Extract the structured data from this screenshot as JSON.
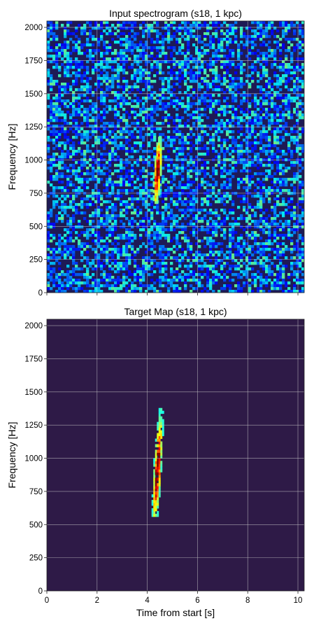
{
  "chart_data": [
    {
      "type": "heatmap",
      "title": "Input spectrogram (s18, 1 kpc)",
      "xlabel": "",
      "ylabel": "Frequency [Hz]",
      "xlim": [
        0,
        10.25
      ],
      "ylim": [
        0,
        2048
      ],
      "x_ticks": [
        0,
        2,
        4,
        6,
        8,
        10
      ],
      "x_ticklabels": [
        "",
        "",
        "",
        "",
        "",
        ""
      ],
      "y_ticks": [
        0,
        250,
        500,
        750,
        1000,
        1250,
        1500,
        1750,
        2000
      ],
      "y_ticklabels": [
        "0",
        "250",
        "500",
        "750",
        "1000",
        "1250",
        "1500",
        "1750",
        "2000"
      ],
      "grid": true,
      "colormap": "jet",
      "background": "noise",
      "signal": {
        "time_s": [
          4.15,
          4.65
        ],
        "freq_hz": [
          650,
          1250
        ],
        "peak": {
          "time_s": 4.4,
          "freq_hz": 900
        }
      }
    },
    {
      "type": "heatmap",
      "title": "Target Map (s18, 1 kpc)",
      "xlabel": "Time from start [s]",
      "ylabel": "Frequency [Hz]",
      "xlim": [
        0,
        10.25
      ],
      "ylim": [
        0,
        2048
      ],
      "x_ticks": [
        0,
        2,
        4,
        6,
        8,
        10
      ],
      "x_ticklabels": [
        "0",
        "2",
        "4",
        "6",
        "8",
        "10"
      ],
      "y_ticks": [
        0,
        250,
        500,
        750,
        1000,
        1250,
        1500,
        1750,
        2000
      ],
      "y_ticklabels": [
        "0",
        "250",
        "500",
        "750",
        "1000",
        "1250",
        "1500",
        "1750",
        "2000"
      ],
      "grid": true,
      "colormap": "jet",
      "background": "zero",
      "signal": {
        "time_s": [
          4.1,
          4.7
        ],
        "freq_hz": [
          560,
          1520
        ],
        "peak": {
          "time_s": 4.4,
          "freq_hz": 900
        }
      }
    }
  ],
  "colors": {
    "noise_background": "#1e1a55",
    "empty_background": "#2e1a47",
    "grid": "#c8c8c8"
  }
}
